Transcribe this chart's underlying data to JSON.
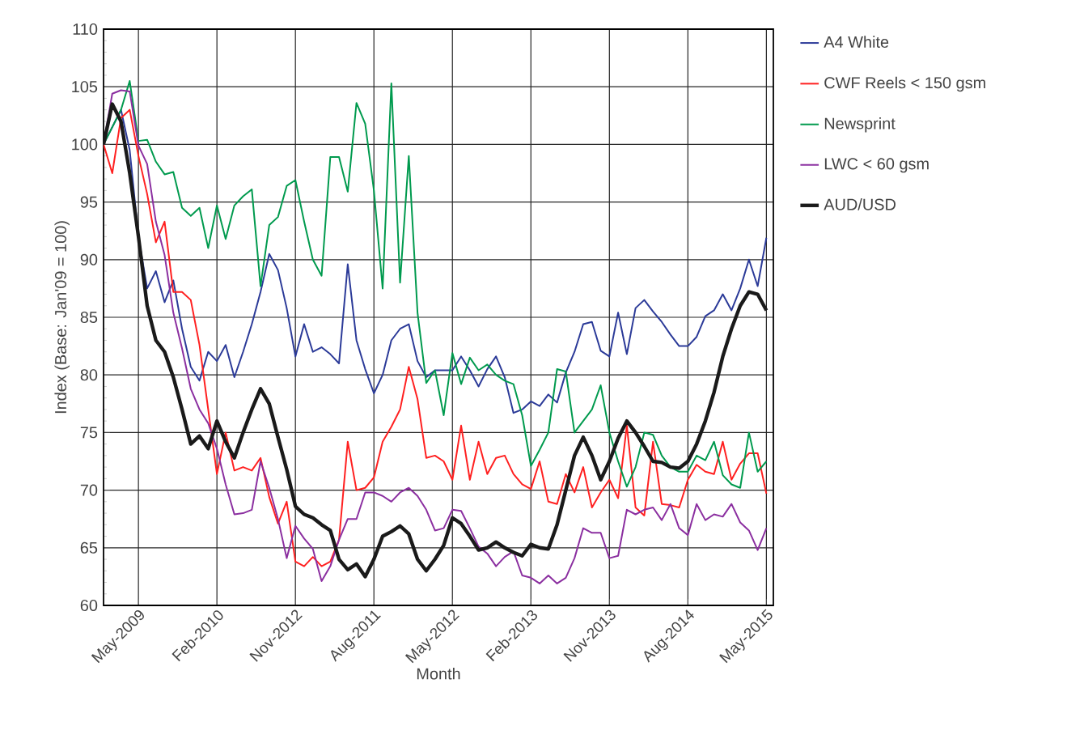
{
  "chart_data": {
    "type": "line",
    "xlabel": "Month",
    "ylabel": "Index (Base: Jan'09 = 100)",
    "categories": [
      null,
      null,
      null,
      null,
      "May-2009",
      null,
      null,
      null,
      null,
      null,
      null,
      null,
      null,
      "Feb-2010",
      null,
      null,
      null,
      null,
      null,
      null,
      null,
      null,
      "Nov-2012",
      null,
      null,
      null,
      null,
      null,
      null,
      null,
      null,
      "Aug-2011",
      null,
      null,
      null,
      null,
      null,
      null,
      null,
      null,
      "May-2012",
      null,
      null,
      null,
      null,
      null,
      null,
      null,
      null,
      "Feb-2013",
      null,
      null,
      null,
      null,
      null,
      null,
      null,
      null,
      "Nov-2013",
      null,
      null,
      null,
      null,
      null,
      null,
      null,
      null,
      "Aug-2014",
      null,
      null,
      null,
      null,
      null,
      null,
      null,
      null,
      "May-2015"
    ],
    "series": [
      {
        "name": "A4 White",
        "color": "#2b3a98",
        "values": [
          100,
          101.5,
          103,
          99.5,
          92,
          87.5,
          89,
          86.3,
          88.2,
          84,
          80.7,
          79.5,
          82,
          81.2,
          82.6,
          79.8,
          82,
          84.4,
          87.2,
          90.5,
          89.1,
          85.8,
          81.6,
          84.4,
          82,
          82.4,
          81.8,
          81,
          89.6,
          83,
          80.5,
          78.4,
          80,
          83,
          84,
          84.4,
          81.2,
          79.8,
          80.4,
          80.4,
          80.4,
          81.6,
          80.4,
          79,
          80.5,
          81.6,
          79.8,
          76.7,
          77,
          77.7,
          77.3,
          78.3,
          77.6,
          80.2,
          82,
          84.4,
          84.6,
          82.1,
          81.6,
          85.4,
          81.8,
          85.8,
          86.5,
          85.5,
          84.6,
          83.5,
          82.5,
          82.5,
          83.3,
          85.1,
          85.6,
          87,
          85.6,
          87.5,
          90,
          87.7,
          91.9
        ]
      },
      {
        "name": "CWF Reels < 150 gsm",
        "color": "#ff2020",
        "values": [
          100,
          97.5,
          102.3,
          103,
          99,
          95.7,
          91.5,
          93.3,
          87.2,
          87.2,
          86.5,
          82.6,
          77,
          71.4,
          75,
          71.7,
          72,
          71.7,
          72.8,
          69.4,
          67.1,
          69,
          63.8,
          63.4,
          64.2,
          63.4,
          63.8,
          65.7,
          74.2,
          70,
          70.2,
          71.1,
          74.2,
          75.5,
          77,
          80.7,
          77.9,
          72.8,
          73,
          72.5,
          70.9,
          75.6,
          70.9,
          74.2,
          71.4,
          72.8,
          73,
          71.4,
          70.5,
          70.1,
          72.5,
          69,
          68.8,
          71.4,
          69.8,
          72,
          68.5,
          69.8,
          70.9,
          69.3,
          75.6,
          68.5,
          67.8,
          74.2,
          68.8,
          68.7,
          68.5,
          70.9,
          72.2,
          71.6,
          71.4,
          74.2,
          70.9,
          72.3,
          73.2,
          73.2,
          69.7
        ]
      },
      {
        "name": "Newsprint",
        "color": "#009a4e",
        "values": [
          100,
          101.5,
          103,
          105.5,
          100.3,
          100.4,
          98.5,
          97.4,
          97.6,
          94.5,
          93.8,
          94.5,
          91,
          94.7,
          91.8,
          94.7,
          95.5,
          96.1,
          87.7,
          93,
          93.7,
          96.4,
          96.9,
          93.3,
          90,
          88.6,
          98.9,
          98.9,
          95.9,
          103.6,
          101.8,
          96,
          87.5,
          105.3,
          88,
          99,
          85.4,
          79.3,
          80.4,
          76.5,
          81.9,
          79.2,
          81.5,
          80.4,
          80.9,
          80,
          79.5,
          79.2,
          76.5,
          72.1,
          73.5,
          75,
          80.5,
          80.3,
          75,
          76,
          77,
          79.1,
          75,
          72.5,
          70.3,
          72,
          75,
          74.8,
          73,
          72,
          71.6,
          71.6,
          73,
          72.6,
          74.2,
          71.3,
          70.5,
          70.2,
          75,
          71.6,
          72.5
        ]
      },
      {
        "name": "LWC < 60 gsm",
        "color": "#8b2fa0",
        "values": [
          100,
          104.4,
          104.7,
          104.6,
          99.9,
          98.3,
          93.3,
          90.4,
          85.4,
          82.3,
          78.8,
          77,
          75.8,
          73.6,
          70.5,
          67.9,
          68,
          68.3,
          72.5,
          70.2,
          67.5,
          64.1,
          66.9,
          65.8,
          64.9,
          62.1,
          63.4,
          65.7,
          67.5,
          67.5,
          69.8,
          69.8,
          69.5,
          69,
          69.8,
          70.2,
          69.5,
          68.3,
          66.5,
          66.7,
          68.3,
          68.2,
          66.7,
          65.1,
          64.5,
          63.4,
          64.2,
          64.7,
          62.6,
          62.4,
          61.9,
          62.6,
          61.9,
          62.4,
          64.1,
          66.7,
          66.3,
          66.3,
          64.1,
          64.3,
          68.3,
          67.9,
          68.3,
          68.5,
          67.4,
          68.8,
          66.7,
          66.1,
          68.8,
          67.4,
          67.9,
          67.7,
          68.8,
          67.2,
          66.5,
          64.8,
          66.7
        ]
      },
      {
        "name": "AUD/USD",
        "color": "#1a1a1a",
        "values": [
          100,
          103.5,
          102,
          97.5,
          92,
          86,
          83,
          82,
          79.8,
          77,
          74,
          74.7,
          73.6,
          76,
          74.2,
          72.8,
          75,
          77,
          78.8,
          77.5,
          74.6,
          71.8,
          68.6,
          67.9,
          67.6,
          67,
          66.5,
          64,
          63.1,
          63.6,
          62.5,
          64,
          66,
          66.4,
          66.9,
          66.2,
          64,
          63,
          64,
          65.2,
          67.6,
          67.1,
          66,
          64.8,
          65,
          65.5,
          65,
          64.6,
          64.3,
          65.3,
          65,
          64.9,
          67,
          70,
          73,
          74.6,
          73,
          70.9,
          72.5,
          74.5,
          76,
          75,
          73.8,
          72.5,
          72.4,
          72,
          71.9,
          72.5,
          74,
          76,
          78.5,
          81.6,
          84,
          86,
          87.2,
          87,
          85.6
        ]
      }
    ],
    "ylim": [
      60,
      110
    ],
    "yticks": [
      60,
      65,
      70,
      75,
      80,
      85,
      90,
      95,
      100,
      105,
      110
    ],
    "grid": true,
    "legend": "right",
    "line_style": "solid",
    "marker": "none"
  }
}
